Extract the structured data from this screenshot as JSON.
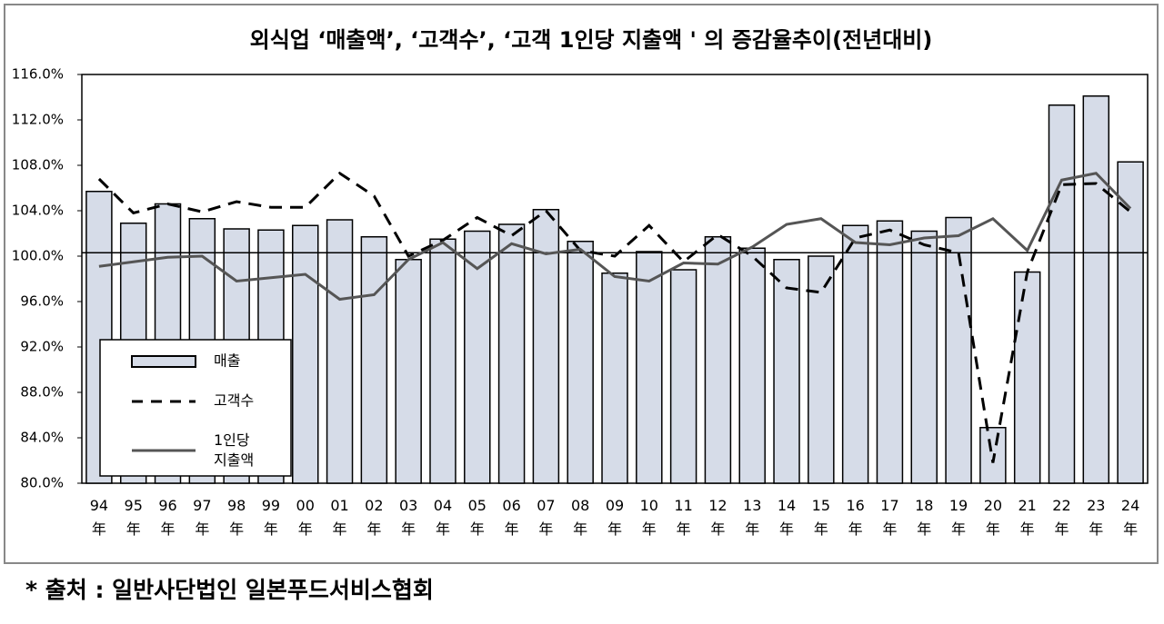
{
  "chart_data": {
    "type": "bar",
    "title": "외식업 ‘매출액’, ‘고객수’, ‘고객 1인당 지출액 ' 의 증감율추이(전년대비)",
    "categories": [
      "94年",
      "95年",
      "96年",
      "97年",
      "98年",
      "99年",
      "00年",
      "01年",
      "02年",
      "03年",
      "04年",
      "05年",
      "06年",
      "07年",
      "08年",
      "09年",
      "10年",
      "11年",
      "12年",
      "13年",
      "14年",
      "15年",
      "16年",
      "17年",
      "18年",
      "19年",
      "20年",
      "21年",
      "22年",
      "23年",
      "24年"
    ],
    "series": [
      {
        "name": "매출",
        "type": "bar",
        "color": "#d6dce8",
        "values": [
          105.7,
          102.9,
          104.6,
          103.3,
          102.4,
          102.3,
          102.7,
          103.2,
          101.7,
          99.7,
          101.5,
          102.2,
          102.8,
          104.1,
          101.3,
          98.5,
          100.4,
          98.8,
          101.7,
          100.7,
          99.7,
          100.0,
          102.7,
          103.1,
          102.2,
          103.4,
          84.9,
          98.6,
          113.3,
          114.1,
          108.3
        ]
      },
      {
        "name": "고객수",
        "type": "line",
        "dashed": true,
        "color": "#000000",
        "values": [
          106.8,
          103.8,
          104.6,
          103.9,
          104.8,
          104.3,
          104.3,
          107.3,
          105.3,
          100.0,
          101.4,
          103.4,
          101.8,
          104.0,
          100.5,
          100.0,
          102.7,
          99.5,
          101.9,
          100.0,
          97.2,
          96.8,
          101.6,
          102.3,
          101.0,
          100.3,
          81.8,
          98.6,
          106.3,
          106.4,
          103.9
        ]
      },
      {
        "name": "1인당 지출액",
        "type": "line",
        "dashed": false,
        "color": "#555555",
        "values": [
          99.1,
          99.5,
          99.9,
          100.0,
          97.8,
          98.1,
          98.4,
          96.2,
          96.6,
          99.7,
          101.2,
          98.9,
          101.1,
          100.2,
          100.6,
          98.2,
          97.8,
          99.4,
          99.3,
          100.8,
          102.8,
          103.3,
          101.2,
          101.0,
          101.6,
          101.8,
          103.3,
          100.5,
          106.7,
          107.3,
          104.2
        ]
      }
    ],
    "ylim": [
      80,
      116
    ],
    "yticks": [
      {
        "value": 80,
        "label": "80.0%"
      },
      {
        "value": 84,
        "label": "84.0%"
      },
      {
        "value": 88,
        "label": "88.0%"
      },
      {
        "value": 92,
        "label": "92.0%"
      },
      {
        "value": 96,
        "label": "96.0%"
      },
      {
        "value": 100,
        "label": "100.0%"
      },
      {
        "value": 104,
        "label": "104.0%"
      },
      {
        "value": 108,
        "label": "108.0%"
      },
      {
        "value": 112,
        "label": "112.0%"
      },
      {
        "value": 116,
        "label": "116.0%"
      }
    ],
    "reference_line": 100.3,
    "grid": false,
    "legend": "lower left"
  },
  "source": "* 출처 : 일반사단법인 일본푸드서비스협회"
}
